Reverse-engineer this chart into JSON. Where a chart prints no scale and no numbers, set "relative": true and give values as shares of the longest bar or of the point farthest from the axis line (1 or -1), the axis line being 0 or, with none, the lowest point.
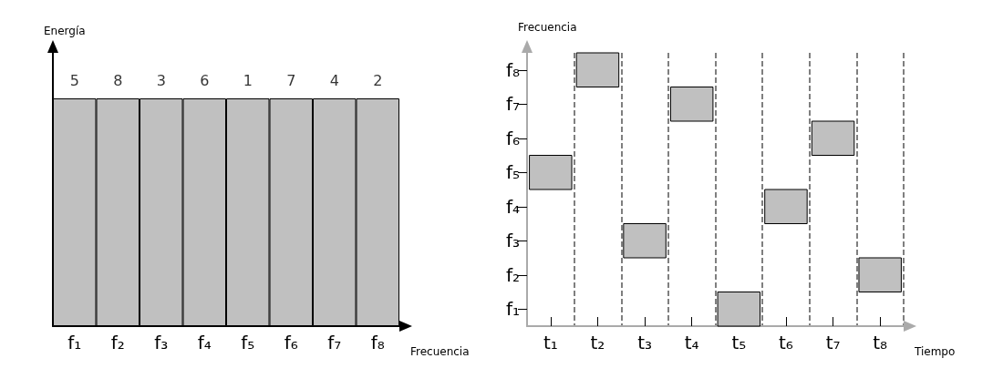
{
  "chart_data": [
    {
      "type": "bar",
      "relative": true,
      "xlabel": "Frecuencia",
      "ylabel": "Energía",
      "categories": [
        "f₁",
        "f₂",
        "f₃",
        "f₄",
        "f₅",
        "f₆",
        "f₇",
        "f₈"
      ],
      "values": [
        1,
        1,
        1,
        1,
        1,
        1,
        1,
        1
      ],
      "color": "#c0c0c0",
      "grid": false,
      "annotations": [
        {
          "text": "5",
          "x": "f₁",
          "y": 1
        },
        {
          "text": "8",
          "x": "f₂",
          "y": 1
        },
        {
          "text": "3",
          "x": "f₃",
          "y": 1
        },
        {
          "text": "6",
          "x": "f₄",
          "y": 1
        },
        {
          "text": "1",
          "x": "f₅",
          "y": 1
        },
        {
          "text": "7",
          "x": "f₆",
          "y": 1
        },
        {
          "text": "4",
          "x": "f₇",
          "y": 1
        },
        {
          "text": "2",
          "x": "f₈",
          "y": 1
        }
      ]
    },
    {
      "type": "heatmap",
      "xlabel": "Tiempo",
      "ylabel": "Frecuencia",
      "categories": [
        "t₁",
        "t₂",
        "t₃",
        "t₄",
        "t₅",
        "t₆",
        "t₇",
        "t₈"
      ],
      "y_categories": [
        "f₈",
        "f₇",
        "f₆",
        "f₅",
        "f₄",
        "f₃",
        "f₂",
        "f₁"
      ],
      "color": "#c0c0c0",
      "grid": "x",
      "cells": [
        [
          null,
          true,
          null,
          null,
          null,
          null,
          null,
          null
        ],
        [
          null,
          null,
          null,
          true,
          null,
          null,
          null,
          null
        ],
        [
          null,
          null,
          null,
          null,
          null,
          null,
          true,
          null
        ],
        [
          true,
          null,
          null,
          null,
          null,
          null,
          null,
          null
        ],
        [
          null,
          null,
          null,
          null,
          null,
          true,
          null,
          null
        ],
        [
          null,
          null,
          true,
          null,
          null,
          null,
          null,
          null
        ],
        [
          null,
          null,
          null,
          null,
          null,
          null,
          null,
          true
        ],
        [
          null,
          null,
          null,
          null,
          true,
          null,
          null,
          null
        ]
      ]
    }
  ]
}
